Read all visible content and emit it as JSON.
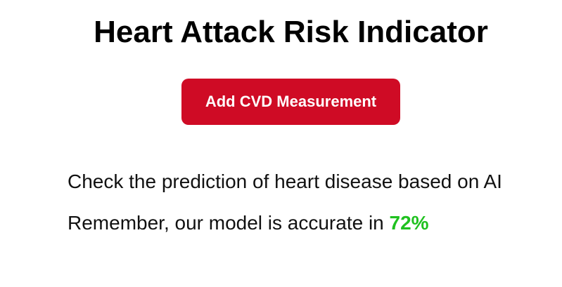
{
  "header": {
    "title": "Heart Attack Risk Indicator"
  },
  "actions": {
    "add_measurement_label": "Add CVD Measurement"
  },
  "info": {
    "prediction_text": "Check the prediction of heart disease based on AI",
    "accuracy_prefix": "Remember, our model is accurate in ",
    "accuracy_value": "72%"
  },
  "colors": {
    "primary_button": "#cf0b25",
    "accuracy_highlight": "#1fc11f"
  }
}
